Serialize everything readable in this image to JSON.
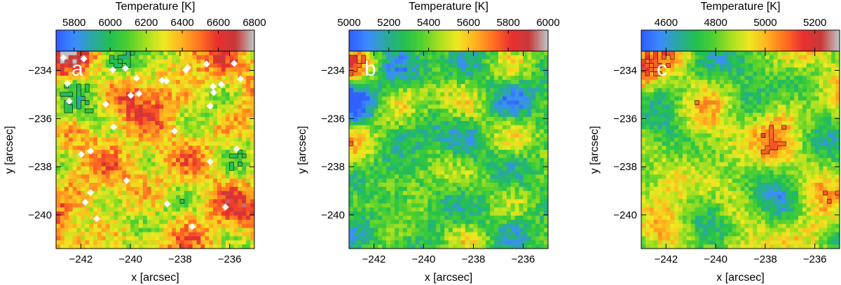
{
  "chart_data": [
    {
      "type": "heatmap",
      "panel_label": "a",
      "colorbar": {
        "title": "Temperature [K]",
        "range": [
          5700,
          6800
        ],
        "ticks": [
          "5800",
          "6000",
          "6200",
          "6400",
          "6600",
          "6800"
        ],
        "tick_values": [
          5800,
          6000,
          6200,
          6400,
          6600,
          6800
        ]
      },
      "xlabel": "x [arcsec]",
      "ylabel": "y [arcsec]",
      "xlim": [
        -243.0,
        -235.0
      ],
      "ylim": [
        -241.4,
        -233.2
      ],
      "x_ticks": [
        "−242",
        "−240",
        "−238",
        "−236"
      ],
      "x_tick_values": [
        -242,
        -240,
        -238,
        -236
      ],
      "y_ticks": [
        "−234",
        "−236",
        "−238",
        "−240"
      ],
      "y_tick_values": [
        -234,
        -236,
        -238,
        -240
      ],
      "grid": false,
      "white_patches": true
    },
    {
      "type": "heatmap",
      "panel_label": "b",
      "colorbar": {
        "title": "Temperature [K]",
        "range": [
          5000,
          6000
        ],
        "ticks": [
          "5000",
          "5200",
          "5400",
          "5600",
          "5800",
          "6000"
        ],
        "tick_values": [
          5000,
          5200,
          5400,
          5600,
          5800,
          6000
        ]
      },
      "xlabel": "x [arcsec]",
      "ylabel": "y [arcsec]",
      "xlim": [
        -243.0,
        -235.0
      ],
      "ylim": [
        -241.4,
        -233.2
      ],
      "x_ticks": [
        "−242",
        "−240",
        "−238",
        "−236"
      ],
      "x_tick_values": [
        -242,
        -240,
        -238,
        -236
      ],
      "y_ticks": [
        "−234",
        "−236",
        "−238",
        "−240"
      ],
      "y_tick_values": [
        -234,
        -236,
        -238,
        -240
      ],
      "grid": false,
      "white_patches": false
    },
    {
      "type": "heatmap",
      "panel_label": "c",
      "colorbar": {
        "title": "Temperature [K]",
        "range": [
          4500,
          5300
        ],
        "ticks": [
          "4600",
          "4800",
          "5000",
          "5200"
        ],
        "tick_values": [
          4600,
          4800,
          5000,
          5200
        ]
      },
      "xlabel": "x [arcsec]",
      "ylabel": "y [arcsec]",
      "xlim": [
        -243.0,
        -235.0
      ],
      "ylim": [
        -241.4,
        -233.2
      ],
      "x_ticks": [
        "−242",
        "−240",
        "−238",
        "−236"
      ],
      "x_tick_values": [
        -242,
        -240,
        -238,
        -236
      ],
      "y_ticks": [
        "−234",
        "−236",
        "−238",
        "−240"
      ],
      "y_tick_values": [
        -234,
        -236,
        -238,
        -240
      ],
      "grid": false,
      "white_patches": false
    }
  ],
  "colors": {
    "colormap": [
      "#3060ff",
      "#3c8cff",
      "#2aa8a0",
      "#22c050",
      "#50d030",
      "#a8e020",
      "#f0e820",
      "#ffb020",
      "#ff7020",
      "#e83030",
      "#c83838",
      "#c0c0c0"
    ],
    "contour": "#000000",
    "patch": "#ffffff",
    "panel_letter": "#ffffff"
  }
}
